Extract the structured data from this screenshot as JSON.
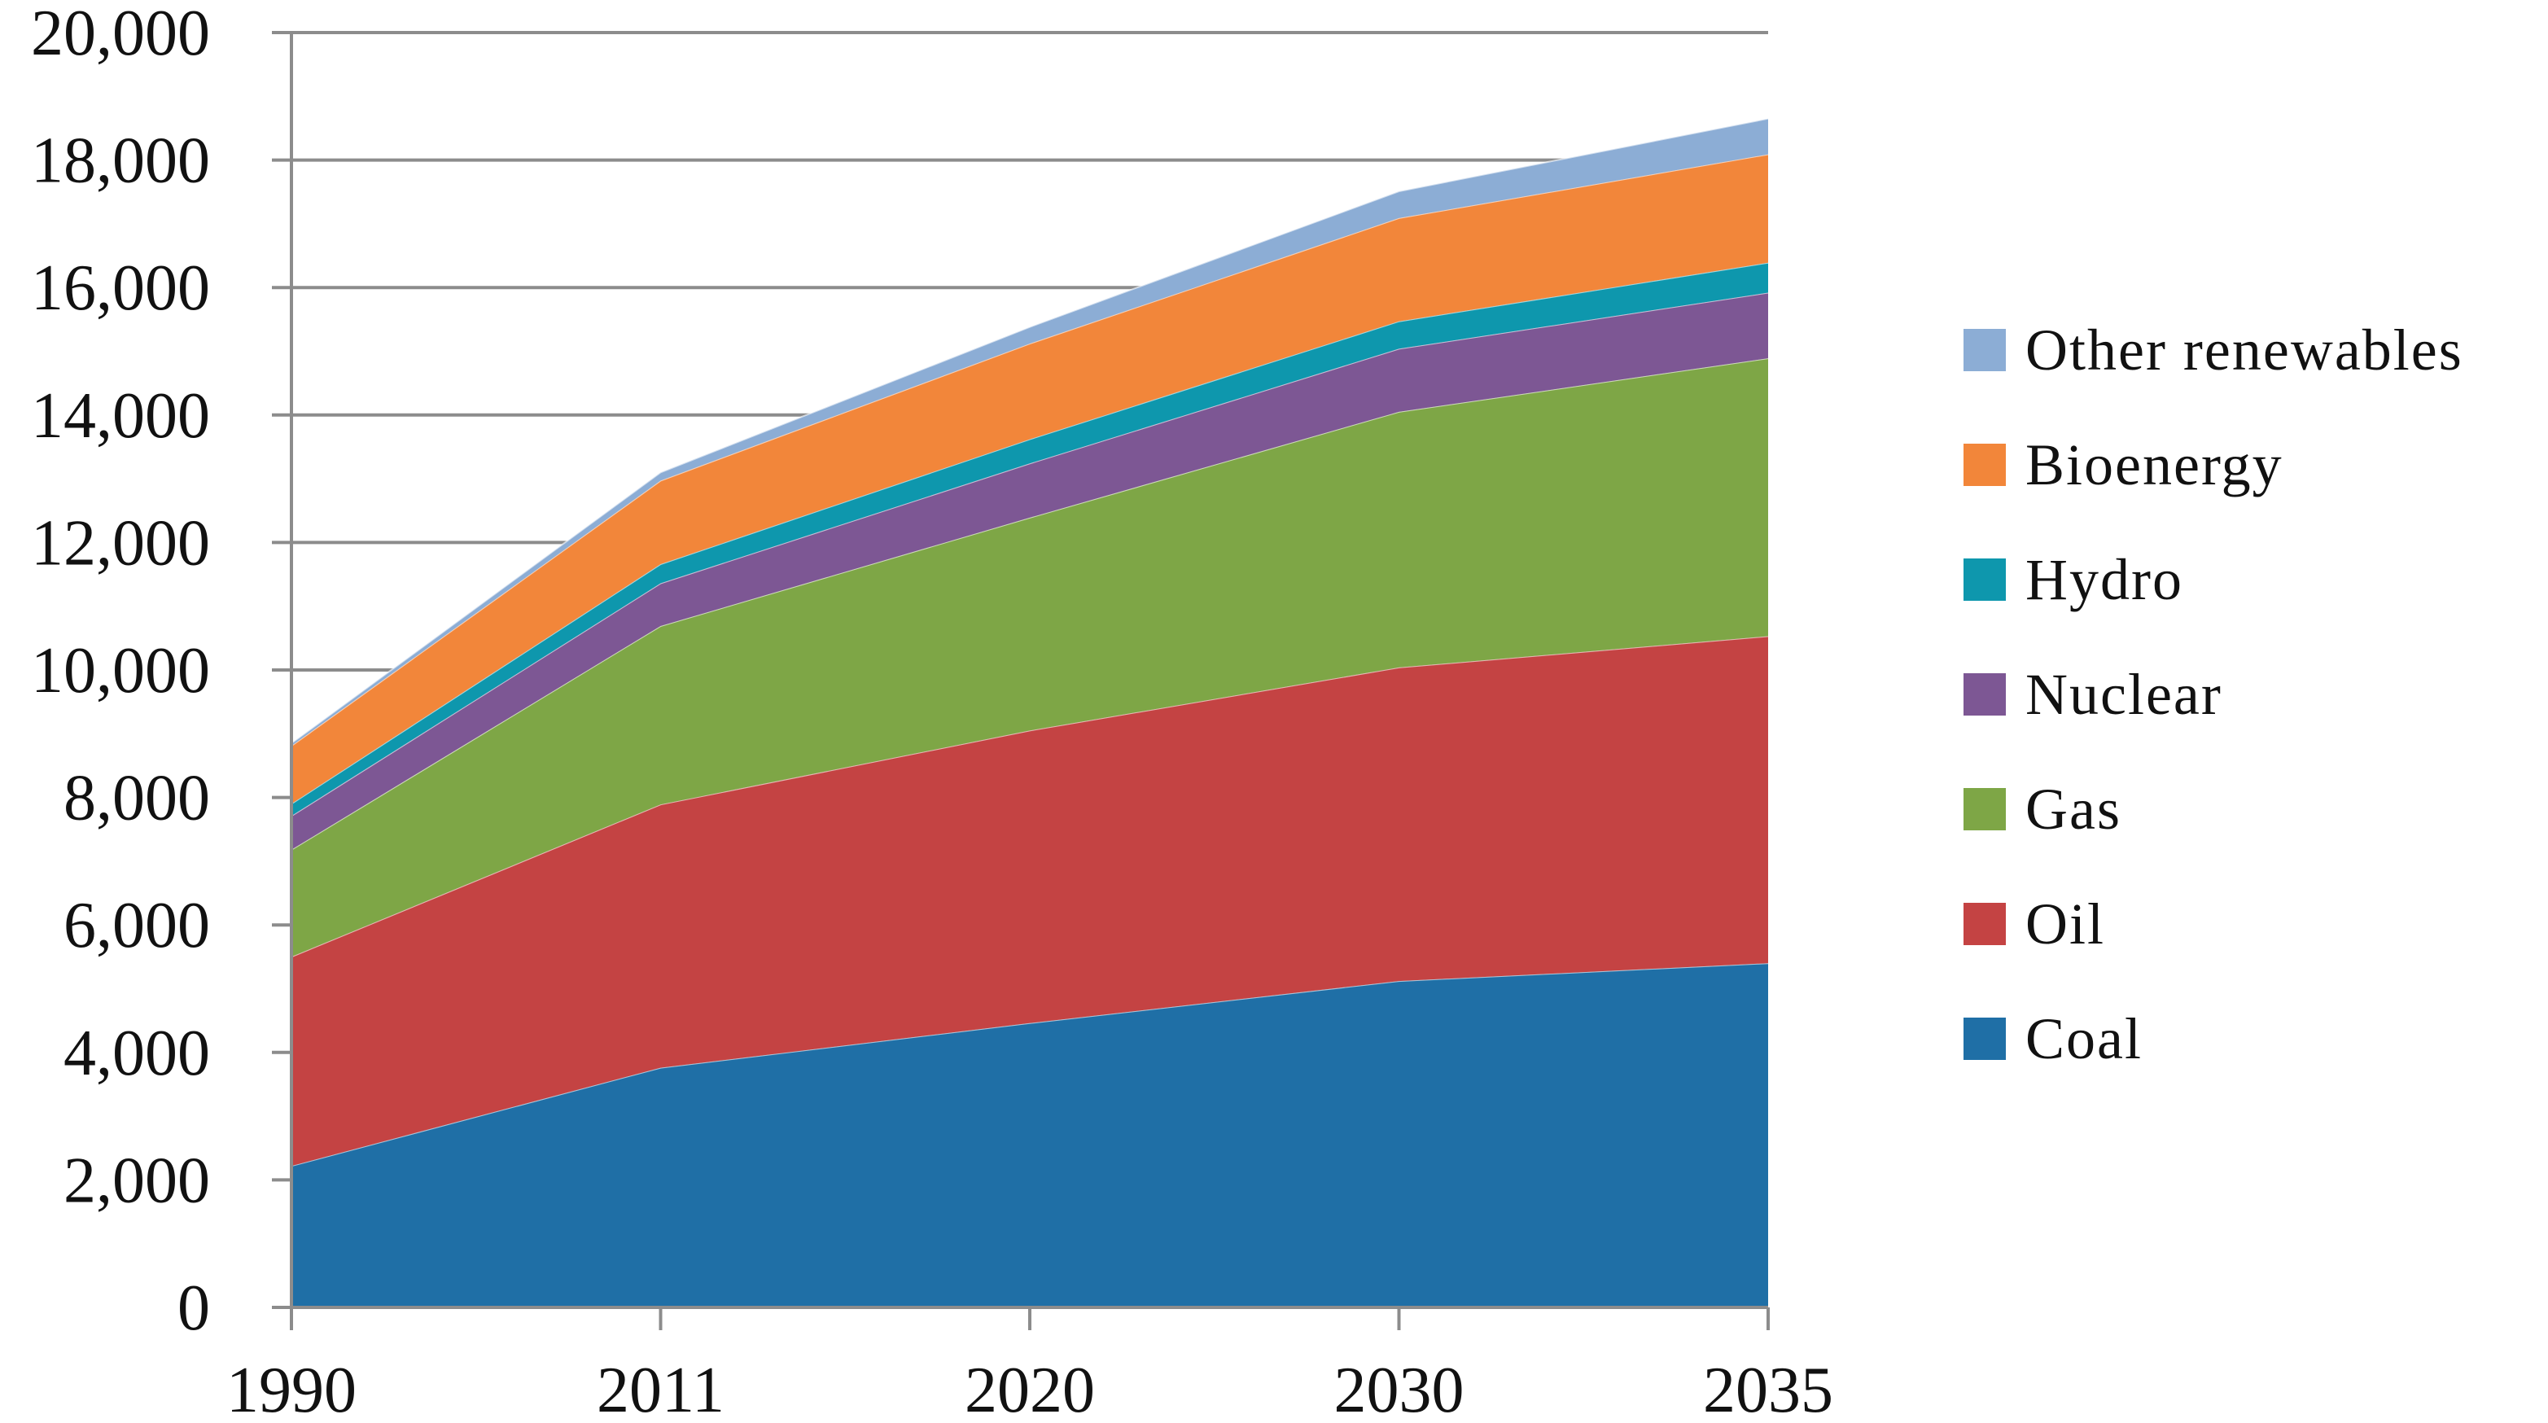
{
  "chart_data": {
    "type": "area",
    "stacked": true,
    "title": "",
    "xlabel": "",
    "ylabel": "",
    "x": [
      "1990",
      "2011",
      "2020",
      "2030",
      "2035"
    ],
    "ylim": [
      0,
      20000
    ],
    "yticks": [
      "0",
      "2,000",
      "4,000",
      "6,000",
      "8,000",
      "10,000",
      "12,000",
      "14,000",
      "16,000",
      "18,000",
      "20,000"
    ],
    "grid": "horizontal",
    "legend_position": "right",
    "series": [
      {
        "name": "Coal",
        "color": "#1F6FA6",
        "values": [
          2220,
          3760,
          4460,
          5120,
          5400
        ]
      },
      {
        "name": "Oil",
        "color": "#C44343",
        "values": [
          3280,
          4130,
          4590,
          4920,
          5130
        ]
      },
      {
        "name": "Gas",
        "color": "#7EA646",
        "values": [
          1680,
          2800,
          3340,
          4010,
          4360
        ]
      },
      {
        "name": "Nuclear",
        "color": "#7D5794",
        "values": [
          530,
          670,
          850,
          990,
          1030
        ]
      },
      {
        "name": "Hydro",
        "color": "#0E97AD",
        "values": [
          190,
          300,
          380,
          430,
          470
        ]
      },
      {
        "name": "Bioenergy",
        "color": "#F2863A",
        "values": [
          910,
          1310,
          1500,
          1620,
          1700
        ]
      },
      {
        "name": "Other renewables",
        "color": "#8CADD5",
        "values": [
          40,
          130,
          260,
          420,
          560
        ]
      }
    ]
  }
}
